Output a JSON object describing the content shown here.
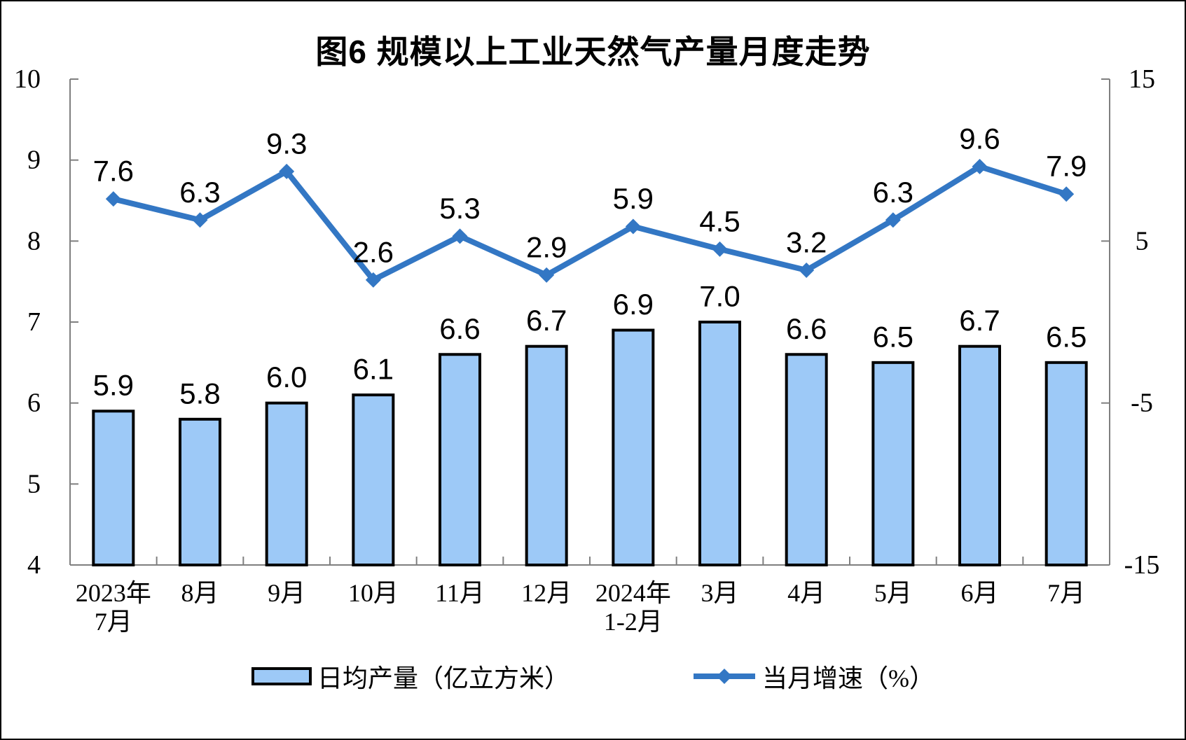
{
  "title": "图6 规模以上工业天然气产量月度走势",
  "chart_data": {
    "type": "bar",
    "subtype": "combo-bar-line-dual-axis",
    "categories": [
      "2023年\n7月",
      "8月",
      "9月",
      "10月",
      "11月",
      "12月",
      "2024年\n1-2月",
      "3月",
      "4月",
      "5月",
      "6月",
      "7月"
    ],
    "series": [
      {
        "name": "日均产量（亿立方米）",
        "type": "bar",
        "axis": "left",
        "values": [
          5.9,
          5.8,
          6.0,
          6.1,
          6.6,
          6.7,
          6.9,
          7.0,
          6.6,
          6.5,
          6.7,
          6.5
        ]
      },
      {
        "name": "当月增速（%）",
        "type": "line",
        "axis": "right",
        "values": [
          7.6,
          6.3,
          9.3,
          2.6,
          5.3,
          2.9,
          5.9,
          4.5,
          3.2,
          6.3,
          9.6,
          7.9
        ]
      }
    ],
    "left_axis": {
      "min": 4,
      "max": 10,
      "ticks": [
        4,
        5,
        6,
        7,
        8,
        9,
        10
      ]
    },
    "right_axis": {
      "min": -15,
      "max": 15,
      "ticks": [
        -15,
        -5,
        5,
        15
      ]
    },
    "grid": false,
    "data_labels": true,
    "legend_position": "bottom",
    "colors": {
      "bar_fill": "#9DC9F7",
      "bar_border": "#000000",
      "line": "#3377C4",
      "label_text": "#000000",
      "axis": "#7F7F7F",
      "background": "#FFFFFF"
    }
  },
  "legend": {
    "items": [
      {
        "label": "日均产量（亿立方米）",
        "swatch": "bar"
      },
      {
        "label": "当月增速（%）",
        "swatch": "line-diamond"
      }
    ]
  }
}
